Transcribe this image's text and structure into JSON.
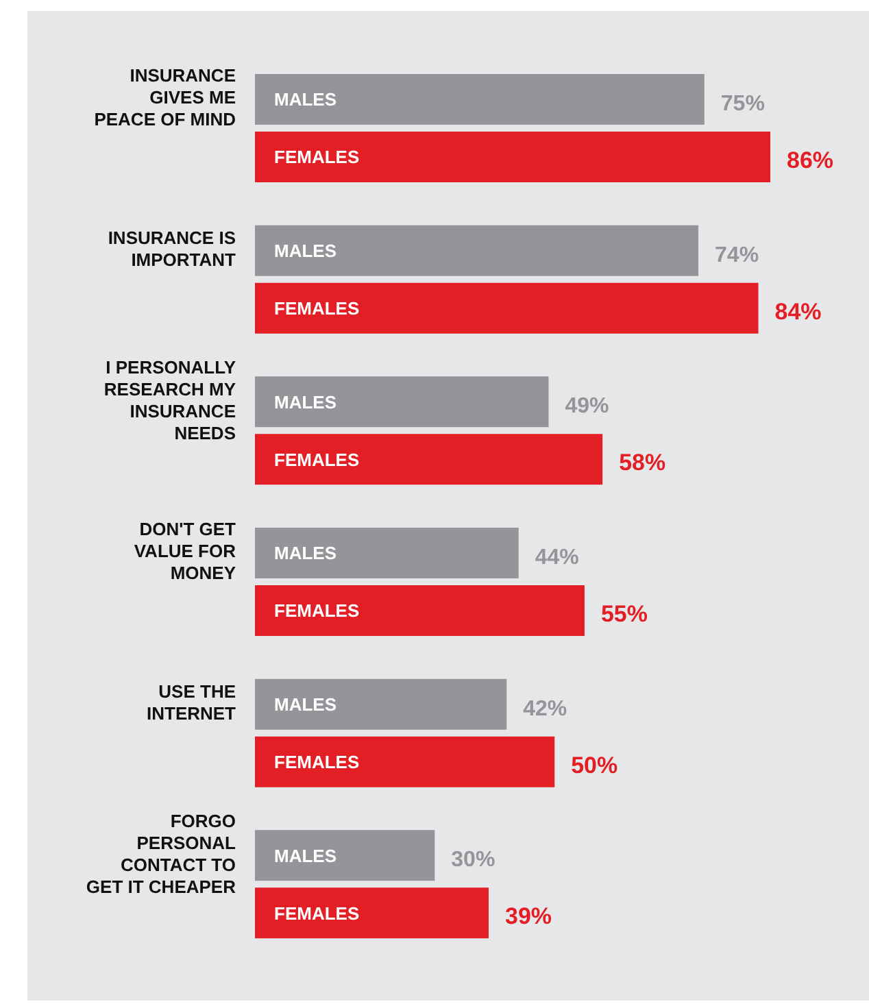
{
  "chart_data": {
    "type": "bar",
    "orientation": "horizontal",
    "categories": [
      "INSURANCE\nGIVES ME\nPEACE OF MIND",
      "INSURANCE IS\nIMPORTANT",
      "I PERSONALLY\nRESEARCH MY\nINSURANCE\nNEEDS",
      "DON'T GET\nVALUE FOR\nMONEY",
      "USE THE\nINTERNET",
      "FORGO\nPERSONAL\nCONTACT TO\nGET IT CHEAPER"
    ],
    "series": [
      {
        "name": "MALES",
        "color": "#939598",
        "values": [
          75,
          74,
          49,
          44,
          42,
          30
        ],
        "value_labels": [
          "75%",
          "74%",
          "49%",
          "44%",
          "42%",
          "30%"
        ]
      },
      {
        "name": "FEMALES",
        "color": "#e31e24",
        "values": [
          86,
          84,
          58,
          55,
          50,
          39
        ],
        "value_labels": [
          "86%",
          "84%",
          "58%",
          "55%",
          "50%",
          "39%"
        ]
      }
    ],
    "tick_labels": false,
    "grid": false
  }
}
